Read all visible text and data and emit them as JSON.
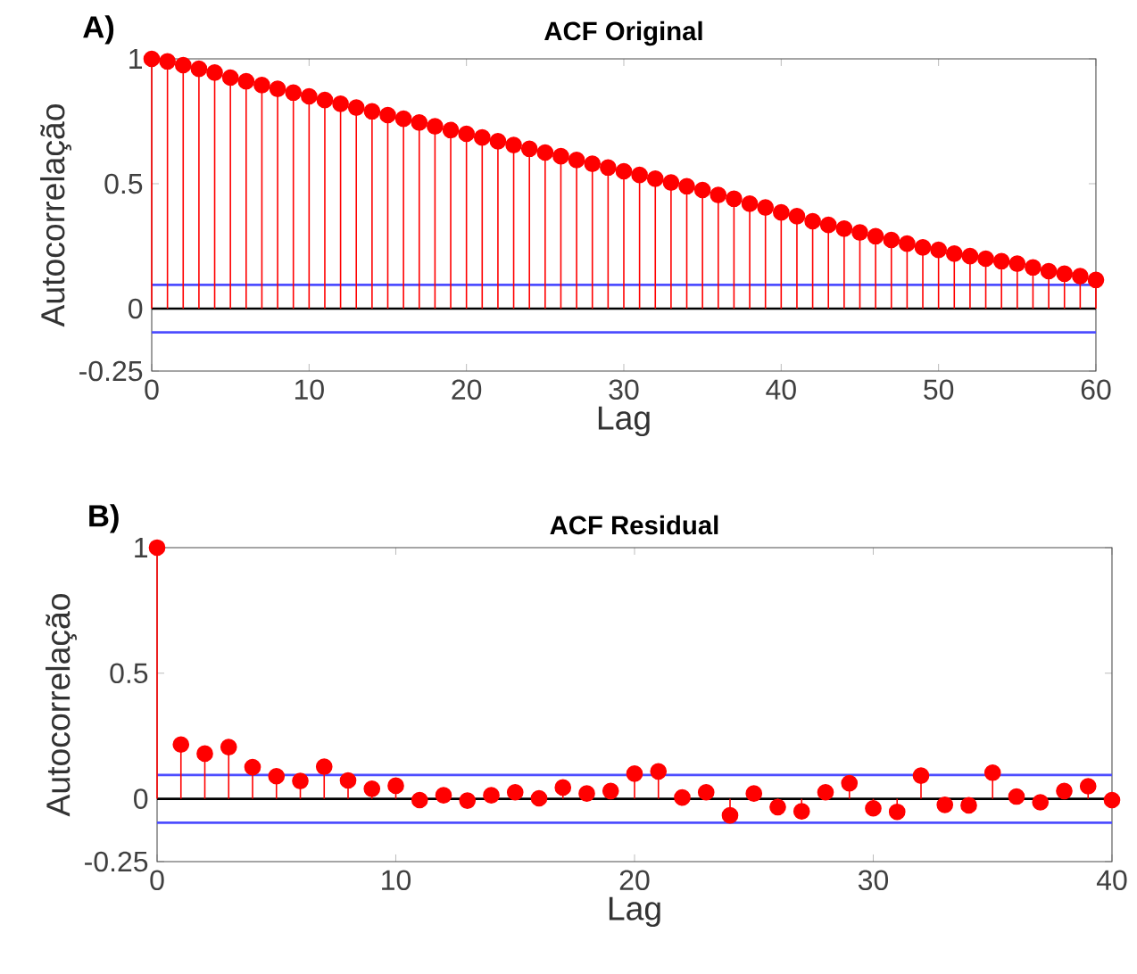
{
  "chart_data": [
    {
      "type": "lollipop",
      "title": "ACF Original",
      "xlabel": "Lag",
      "ylabel": "Autocorrelação",
      "annotations": [
        "A)"
      ],
      "color": "#ff0000",
      "marker": "circle",
      "x": [
        0,
        1,
        2,
        3,
        4,
        5,
        6,
        7,
        8,
        9,
        10,
        11,
        12,
        13,
        14,
        15,
        16,
        17,
        18,
        19,
        20,
        21,
        22,
        23,
        24,
        25,
        26,
        27,
        28,
        29,
        30,
        31,
        32,
        33,
        34,
        35,
        36,
        37,
        38,
        39,
        40,
        41,
        42,
        43,
        44,
        45,
        46,
        47,
        48,
        49,
        50,
        51,
        52,
        53,
        54,
        55,
        56,
        57,
        58,
        59,
        60
      ],
      "values": [
        1.0,
        0.99,
        0.975,
        0.96,
        0.945,
        0.925,
        0.91,
        0.895,
        0.88,
        0.865,
        0.85,
        0.835,
        0.82,
        0.805,
        0.79,
        0.775,
        0.76,
        0.745,
        0.73,
        0.715,
        0.7,
        0.685,
        0.67,
        0.655,
        0.64,
        0.625,
        0.61,
        0.595,
        0.58,
        0.565,
        0.55,
        0.535,
        0.52,
        0.505,
        0.49,
        0.475,
        0.455,
        0.44,
        0.42,
        0.405,
        0.385,
        0.37,
        0.35,
        0.335,
        0.32,
        0.305,
        0.29,
        0.275,
        0.26,
        0.245,
        0.235,
        0.22,
        0.21,
        0.2,
        0.19,
        0.18,
        0.165,
        0.15,
        0.14,
        0.13,
        0.115
      ],
      "xlim": [
        0,
        60
      ],
      "xticks": [
        0,
        10,
        20,
        30,
        40,
        50,
        60
      ],
      "ylim": [
        -0.25,
        1
      ],
      "yticks": [
        -0.25,
        0,
        0.5,
        1
      ],
      "ref_lines": [
        {
          "axis": "y",
          "value": 0,
          "color": "#000000"
        },
        {
          "axis": "y",
          "value": 0.095,
          "color": "#4d4dff"
        },
        {
          "axis": "y",
          "value": -0.095,
          "color": "#4d4dff"
        }
      ]
    },
    {
      "type": "lollipop",
      "title": "ACF Residual",
      "xlabel": "Lag",
      "ylabel": "Autocorrelação",
      "annotations": [
        "B)"
      ],
      "color": "#ff0000",
      "marker": "circle",
      "x": [
        0,
        1,
        2,
        3,
        4,
        5,
        6,
        7,
        8,
        9,
        10,
        11,
        12,
        13,
        14,
        15,
        16,
        17,
        18,
        19,
        20,
        21,
        22,
        23,
        24,
        25,
        26,
        27,
        28,
        29,
        30,
        31,
        32,
        33,
        34,
        35,
        36,
        37,
        38,
        39,
        40
      ],
      "values": [
        1.0,
        0.216,
        0.18,
        0.206,
        0.126,
        0.09,
        0.071,
        0.128,
        0.073,
        0.04,
        0.052,
        -0.005,
        0.014,
        -0.007,
        0.014,
        0.026,
        0.002,
        0.045,
        0.021,
        0.031,
        0.1,
        0.109,
        0.005,
        0.026,
        -0.066,
        0.021,
        -0.033,
        -0.05,
        0.026,
        0.062,
        -0.038,
        -0.052,
        0.092,
        -0.024,
        -0.026,
        0.104,
        0.009,
        -0.014,
        0.031,
        0.05,
        -0.005
      ],
      "xlim": [
        0,
        40
      ],
      "xticks": [
        0,
        10,
        20,
        30,
        40
      ],
      "ylim": [
        -0.25,
        1
      ],
      "yticks": [
        -0.25,
        0,
        0.5,
        1
      ],
      "ref_lines": [
        {
          "axis": "y",
          "value": 0,
          "color": "#000000"
        },
        {
          "axis": "y",
          "value": 0.095,
          "color": "#4d4dff"
        },
        {
          "axis": "y",
          "value": -0.095,
          "color": "#4d4dff"
        }
      ]
    }
  ]
}
